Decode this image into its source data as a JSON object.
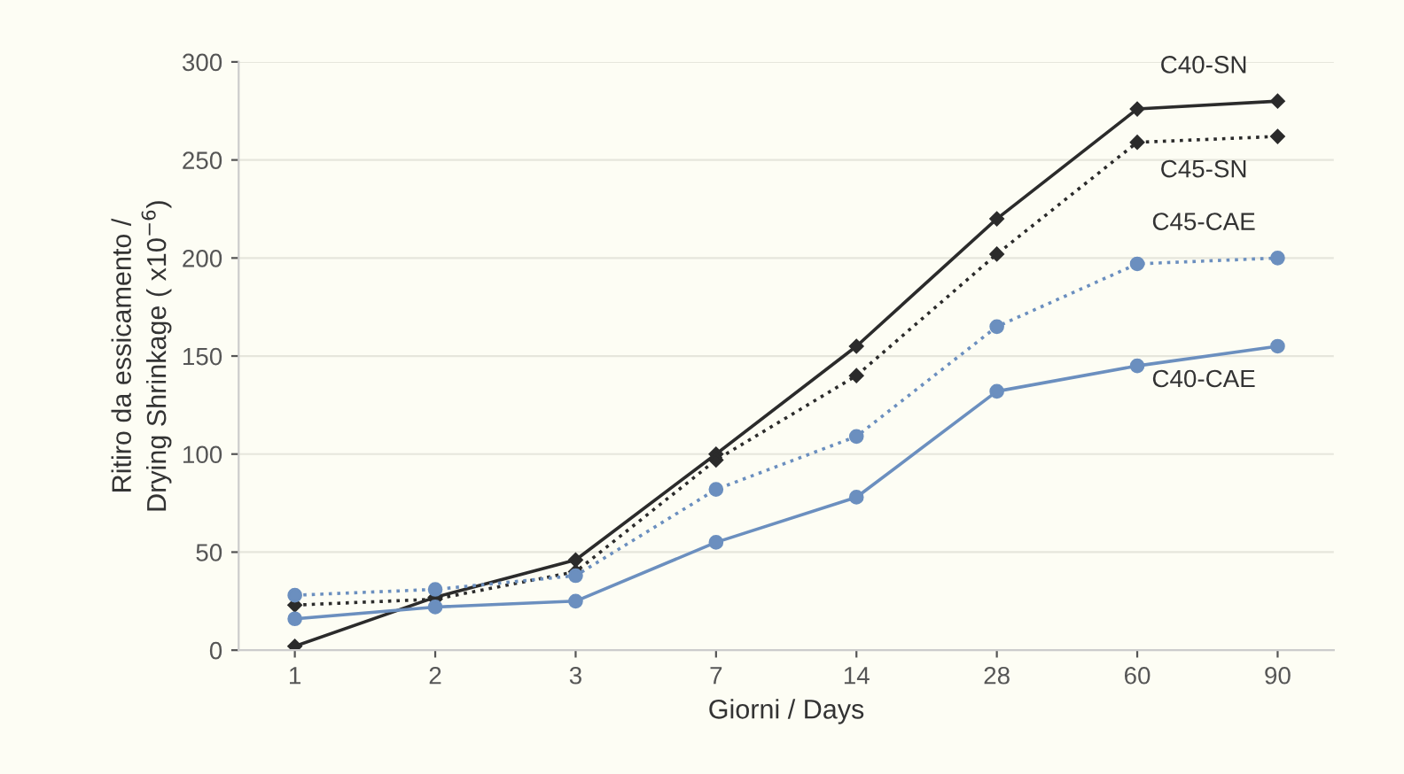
{
  "chart_data": {
    "type": "line",
    "xlabel": "Giorni / Days",
    "ylabel": "Ritiro da essicamento /\nDrying Shrinkage ( x10$^{−6}$)",
    "categories": [
      "1",
      "2",
      "3",
      "7",
      "14",
      "28",
      "60",
      "90"
    ],
    "series": [
      {
        "name": "C40-SN",
        "color": "#2b2b2b",
        "line_style": "solid",
        "marker": "diamond",
        "values": [
          2,
          27,
          46,
          100,
          155,
          220,
          276,
          280
        ]
      },
      {
        "name": "C45-SN",
        "color": "#2b2b2b",
        "line_style": "dotted",
        "marker": "diamond",
        "values": [
          23,
          26,
          40,
          97,
          140,
          202,
          259,
          262
        ]
      },
      {
        "name": "C45-CAE",
        "color": "#6b8fbf",
        "line_style": "dotted",
        "marker": "circle",
        "values": [
          28,
          31,
          38,
          82,
          109,
          165,
          197,
          200
        ]
      },
      {
        "name": "C40-CAE",
        "color": "#6b8fbf",
        "line_style": "solid",
        "marker": "circle",
        "values": [
          16,
          22,
          25,
          55,
          78,
          132,
          145,
          155
        ]
      }
    ],
    "ylim": [
      0,
      300
    ],
    "yticks": [
      0,
      50,
      100,
      150,
      200,
      250,
      300
    ],
    "grid": "y",
    "legend": false
  }
}
